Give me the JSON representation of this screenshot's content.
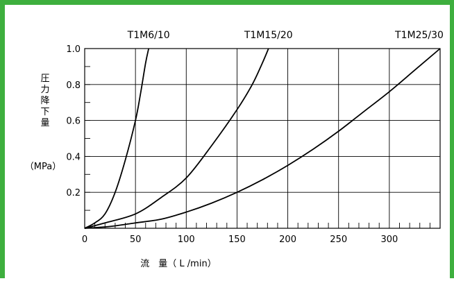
{
  "chart_data": {
    "type": "line",
    "xlabel": "流　量（ L /min）",
    "ylabel": "圧力降下量",
    "ylabel_unit": "（MPa）",
    "xlim": [
      0,
      350
    ],
    "ylim": [
      0,
      1.0
    ],
    "x_ticks": [
      "0",
      "50",
      "100",
      "150",
      "200",
      "250",
      "300"
    ],
    "y_ticks": [
      "0.2",
      "0.4",
      "0.6",
      "0.8",
      "1.0"
    ],
    "grid": true,
    "series": [
      {
        "name": "T1M6/10",
        "color": "#000000",
        "points": [
          [
            0,
            0
          ],
          [
            10,
            0.03
          ],
          [
            20,
            0.08
          ],
          [
            30,
            0.2
          ],
          [
            40,
            0.38
          ],
          [
            50,
            0.6
          ],
          [
            55,
            0.75
          ],
          [
            60,
            0.92
          ],
          [
            63,
            1.0
          ]
        ]
      },
      {
        "name": "T1M15/20",
        "color": "#000000",
        "points": [
          [
            0,
            0
          ],
          [
            20,
            0.03
          ],
          [
            50,
            0.08
          ],
          [
            75,
            0.17
          ],
          [
            100,
            0.28
          ],
          [
            125,
            0.46
          ],
          [
            150,
            0.66
          ],
          [
            165,
            0.8
          ],
          [
            175,
            0.92
          ],
          [
            181,
            1.0
          ]
        ]
      },
      {
        "name": "T1M25/30",
        "color": "#000000",
        "points": [
          [
            0,
            0
          ],
          [
            25,
            0.01
          ],
          [
            50,
            0.03
          ],
          [
            75,
            0.05
          ],
          [
            100,
            0.09
          ],
          [
            125,
            0.14
          ],
          [
            150,
            0.2
          ],
          [
            175,
            0.27
          ],
          [
            200,
            0.35
          ],
          [
            225,
            0.44
          ],
          [
            250,
            0.54
          ],
          [
            275,
            0.65
          ],
          [
            300,
            0.76
          ],
          [
            325,
            0.88
          ],
          [
            350,
            1.0
          ]
        ]
      }
    ]
  }
}
